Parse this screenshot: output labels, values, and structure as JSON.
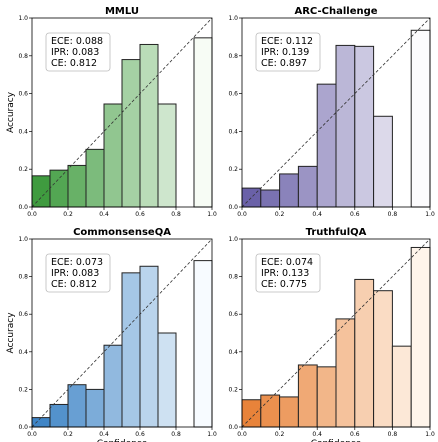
{
  "axis_labels": {
    "x": "Confidence",
    "y": "Accuracy"
  },
  "chart_data": [
    {
      "type": "bar",
      "title": "MMLU",
      "bin_edges": [
        0.0,
        0.1,
        0.2,
        0.3,
        0.4,
        0.5,
        0.6,
        0.7,
        0.8,
        0.9,
        1.0
      ],
      "values": [
        0.165,
        0.195,
        0.22,
        0.305,
        0.545,
        0.78,
        0.86,
        0.545,
        null,
        0.895
      ],
      "xlim": [
        0,
        1
      ],
      "ylim": [
        0,
        1
      ],
      "xticks": [
        "0.0",
        "0.2",
        "0.4",
        "0.6",
        "0.8",
        "1.0"
      ],
      "yticks": [
        "0.0",
        "0.2",
        "0.4",
        "0.6",
        "0.8",
        "1.0"
      ],
      "diagonal": true,
      "stats": [
        "ECE: 0.088",
        "IPR: 0.083",
        "CE: 0.812"
      ],
      "colormap": {
        "dark": "#3f9b3f",
        "light": "#f7fcf5"
      }
    },
    {
      "type": "bar",
      "title": "ARC-Challenge",
      "bin_edges": [
        0.0,
        0.1,
        0.2,
        0.3,
        0.4,
        0.5,
        0.6,
        0.7,
        0.8,
        0.9,
        1.0
      ],
      "values": [
        0.1,
        0.09,
        0.175,
        0.215,
        0.65,
        0.855,
        0.85,
        0.48,
        null,
        0.935
      ],
      "xlim": [
        0,
        1
      ],
      "ylim": [
        0,
        1
      ],
      "xticks": [
        "0.0",
        "0.2",
        "0.4",
        "0.6",
        "0.8",
        "1.0"
      ],
      "yticks": [
        "0.0",
        "0.2",
        "0.4",
        "0.6",
        "0.8",
        "1.0"
      ],
      "diagonal": true,
      "stats": [
        "ECE: 0.112",
        "IPR: 0.139",
        "CE: 0.897"
      ],
      "colormap": {
        "dark": "#6a61a8",
        "light": "#fcfbfd"
      }
    },
    {
      "type": "bar",
      "title": "CommonsenseQA",
      "bin_edges": [
        0.0,
        0.1,
        0.2,
        0.3,
        0.4,
        0.5,
        0.6,
        0.7,
        0.8,
        0.9,
        1.0
      ],
      "values": [
        0.05,
        0.12,
        0.225,
        0.2,
        0.435,
        0.82,
        0.855,
        0.5,
        null,
        0.885
      ],
      "xlim": [
        0,
        1
      ],
      "ylim": [
        0,
        1
      ],
      "xticks": [
        "0.0",
        "0.2",
        "0.4",
        "0.6",
        "0.8",
        "1.0"
      ],
      "yticks": [
        "0.0",
        "0.2",
        "0.4",
        "0.6",
        "0.8",
        "1.0"
      ],
      "diagonal": true,
      "stats": [
        "ECE: 0.073",
        "IPR: 0.083",
        "CE: 0.812"
      ],
      "colormap": {
        "dark": "#3f85c6",
        "light": "#f7fbff"
      }
    },
    {
      "type": "bar",
      "title": "TruthfulQA",
      "bin_edges": [
        0.0,
        0.1,
        0.2,
        0.3,
        0.4,
        0.5,
        0.6,
        0.7,
        0.8,
        0.9,
        1.0
      ],
      "values": [
        0.145,
        0.17,
        0.16,
        0.33,
        0.32,
        0.575,
        0.785,
        0.725,
        0.43,
        0.955
      ],
      "xlim": [
        0,
        1
      ],
      "ylim": [
        0,
        1
      ],
      "xticks": [
        "0.0",
        "0.2",
        "0.4",
        "0.6",
        "0.8",
        "1.0"
      ],
      "yticks": [
        "0.0",
        "0.2",
        "0.4",
        "0.6",
        "0.8",
        "1.0"
      ],
      "diagonal": true,
      "stats": [
        "ECE: 0.074",
        "IPR: 0.133",
        "CE: 0.775"
      ],
      "colormap": {
        "dark": "#e8833a",
        "light": "#fff5eb"
      }
    }
  ]
}
